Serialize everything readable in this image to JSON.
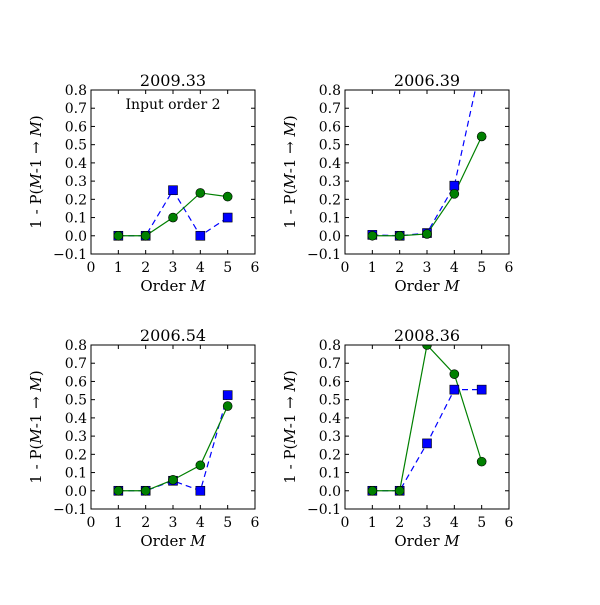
{
  "figure": {
    "background": "#ffffff",
    "series_styles": [
      {
        "color": "#0000ff",
        "marker": "square",
        "line": "dashed"
      },
      {
        "color": "#008000",
        "marker": "circle",
        "line": "solid"
      }
    ]
  },
  "chart_data": [
    {
      "type": "line",
      "title": "2009.33",
      "annotation": "Input order 2",
      "xlabel": "Order M",
      "ylabel": "1 - P(M-1 → M)",
      "xlim": [
        0,
        6
      ],
      "ylim": [
        -0.1,
        0.8
      ],
      "x_ticks": [
        "0",
        "1",
        "2",
        "3",
        "4",
        "5",
        "6"
      ],
      "y_ticks": [
        "−0.1",
        "0.0",
        "0.1",
        "0.2",
        "0.3",
        "0.4",
        "0.5",
        "0.6",
        "0.7",
        "0.8"
      ],
      "grid": false,
      "series": [
        {
          "x": [
            1,
            2,
            3,
            4,
            5
          ],
          "values": [
            0.0,
            0.0,
            0.25,
            0.0,
            0.1
          ]
        },
        {
          "x": [
            1,
            2,
            3,
            4,
            5
          ],
          "values": [
            0.0,
            0.0,
            0.1,
            0.235,
            0.215
          ]
        }
      ]
    },
    {
      "type": "line",
      "title": "2006.39",
      "xlabel": "Order M",
      "ylabel": "1 - P(M-1 → M)",
      "xlim": [
        0,
        6
      ],
      "ylim": [
        -0.1,
        0.8
      ],
      "x_ticks": [
        "0",
        "1",
        "2",
        "3",
        "4",
        "5",
        "6"
      ],
      "y_ticks": [
        "−0.1",
        "0.0",
        "0.1",
        "0.2",
        "0.3",
        "0.4",
        "0.5",
        "0.6",
        "0.7",
        "0.8"
      ],
      "grid": false,
      "series": [
        {
          "x": [
            1,
            2,
            3,
            4,
            5
          ],
          "values": [
            0.005,
            0.0,
            0.015,
            0.275,
            0.96
          ]
        },
        {
          "x": [
            1,
            2,
            3,
            4,
            5
          ],
          "values": [
            0.0,
            0.0,
            0.01,
            0.23,
            0.545
          ]
        }
      ]
    },
    {
      "type": "line",
      "title": "2006.54",
      "xlabel": "Order M",
      "ylabel": "1 - P(M-1 → M)",
      "xlim": [
        0,
        6
      ],
      "ylim": [
        -0.1,
        0.8
      ],
      "x_ticks": [
        "0",
        "1",
        "2",
        "3",
        "4",
        "5",
        "6"
      ],
      "y_ticks": [
        "−0.1",
        "0.0",
        "0.1",
        "0.2",
        "0.3",
        "0.4",
        "0.5",
        "0.6",
        "0.7",
        "0.8"
      ],
      "grid": false,
      "series": [
        {
          "x": [
            1,
            2,
            3,
            4,
            5
          ],
          "values": [
            0.0,
            0.0,
            0.055,
            0.0,
            0.525
          ]
        },
        {
          "x": [
            1,
            2,
            3,
            4,
            5
          ],
          "values": [
            0.0,
            0.0,
            0.06,
            0.14,
            0.465
          ]
        }
      ]
    },
    {
      "type": "line",
      "title": "2008.36",
      "xlabel": "Order M",
      "ylabel": "1 - P(M-1 → M)",
      "xlim": [
        0,
        6
      ],
      "ylim": [
        -0.1,
        0.8
      ],
      "x_ticks": [
        "0",
        "1",
        "2",
        "3",
        "4",
        "5",
        "6"
      ],
      "y_ticks": [
        "−0.1",
        "0.0",
        "0.1",
        "0.2",
        "0.3",
        "0.4",
        "0.5",
        "0.6",
        "0.7",
        "0.8"
      ],
      "grid": false,
      "series": [
        {
          "x": [
            1,
            2,
            3,
            4,
            5
          ],
          "values": [
            0.0,
            0.0,
            0.26,
            0.555,
            0.555
          ]
        },
        {
          "x": [
            1,
            2,
            3,
            4,
            5
          ],
          "values": [
            0.0,
            0.0,
            0.8,
            0.64,
            0.16
          ]
        }
      ]
    }
  ]
}
